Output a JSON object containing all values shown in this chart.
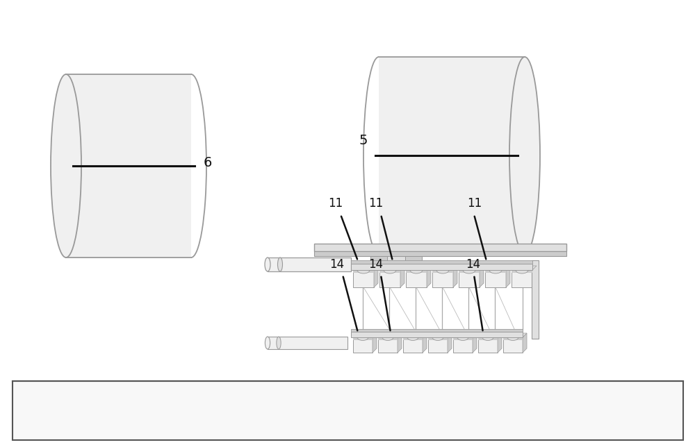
{
  "bg_color": "#ffffff",
  "lc": "#999999",
  "lc2": "#aaaaaa",
  "lc3": "#bbbbbb",
  "dk": "#555555",
  "bk": "#111111",
  "fc_light": "#f0f0f0",
  "fc_mid": "#e0e0e0",
  "fc_dark": "#cccccc",
  "figsize": [
    10.0,
    6.44
  ],
  "dpi": 100,
  "label_6": "6",
  "label_5": "5"
}
